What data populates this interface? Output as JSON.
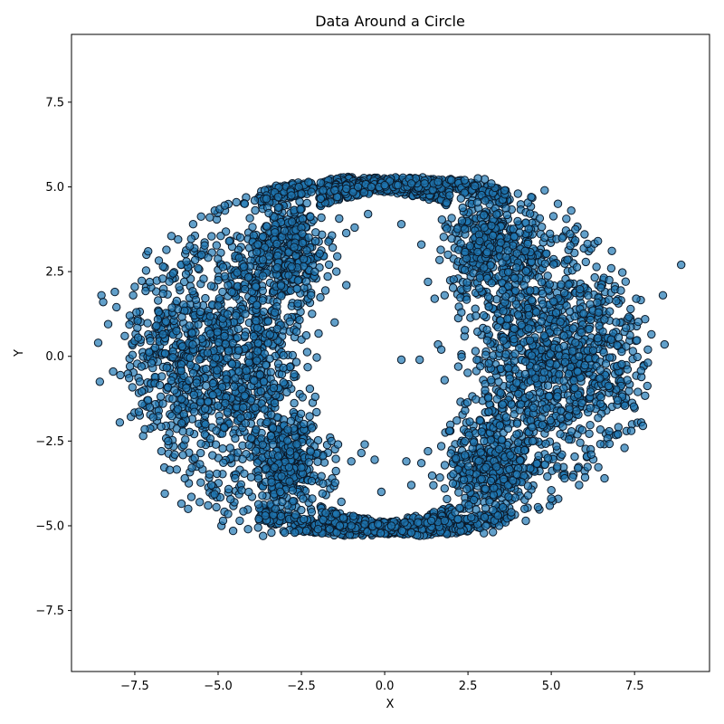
{
  "chart_data": {
    "type": "scatter",
    "title": "Data Around a Circle",
    "xlabel": "X",
    "ylabel": "Y",
    "xlim": [
      -9.4,
      9.75
    ],
    "ylim": [
      -9.3,
      9.5
    ],
    "xticks": [
      -7.5,
      -5.0,
      -2.5,
      0.0,
      2.5,
      5.0,
      7.5
    ],
    "yticks": [
      -7.5,
      -5.0,
      -2.5,
      0.0,
      2.5,
      5.0,
      7.5
    ],
    "xtick_labels": [
      "−7.5",
      "−5.0",
      "−2.5",
      "0.0",
      "2.5",
      "5.0",
      "7.5"
    ],
    "ytick_labels": [
      "−7.5",
      "−5.0",
      "−2.5",
      "0.0",
      "2.5",
      "5.0",
      "7.5"
    ],
    "grid": false,
    "marker_color": "#1f77b4",
    "marker_edge_color": "#0b1a2a",
    "marker_alpha": 0.7,
    "approx_point_count": 5000,
    "points": [
      [
        -8.6,
        0.4
      ],
      [
        -8.55,
        -0.75
      ],
      [
        -8.5,
        1.8
      ],
      [
        -8.45,
        1.6
      ],
      [
        -8.3,
        0.95
      ],
      [
        -8.15,
        -0.45
      ],
      [
        -8.1,
        1.9
      ],
      [
        -8.05,
        1.45
      ],
      [
        -7.95,
        -1.95
      ],
      [
        -7.8,
        0.6
      ],
      [
        -7.65,
        1.2
      ],
      [
        -7.55,
        1.8
      ],
      [
        -7.5,
        2.05
      ],
      [
        -7.45,
        1.3
      ],
      [
        -7.4,
        0.55
      ],
      [
        -7.35,
        -0.75
      ],
      [
        -7.3,
        -0.3
      ],
      [
        -7.25,
        -2.35
      ],
      [
        -7.2,
        -2.15
      ],
      [
        -7.15,
        3.0
      ],
      [
        -7.1,
        3.1
      ],
      [
        -7.05,
        -1.5
      ],
      [
        -7.0,
        -0.2
      ],
      [
        -6.95,
        -1.8
      ],
      [
        -6.9,
        -0.8
      ],
      [
        -6.85,
        0.9
      ],
      [
        -6.8,
        1.65
      ],
      [
        -6.75,
        -0.85
      ],
      [
        -6.7,
        -2.8
      ],
      [
        -6.65,
        2.65
      ],
      [
        -6.6,
        -4.05
      ],
      [
        -6.5,
        -2.5
      ],
      [
        -6.45,
        -3.35
      ],
      [
        -6.4,
        3.55
      ],
      [
        -6.35,
        2.45
      ],
      [
        -6.3,
        -2.9
      ],
      [
        -6.25,
        0.75
      ],
      [
        -6.2,
        3.45
      ],
      [
        -6.1,
        -4.35
      ],
      [
        -6.0,
        -3.6
      ],
      [
        -5.95,
        2.8
      ],
      [
        -5.9,
        -4.5
      ],
      [
        -5.85,
        3.25
      ],
      [
        -5.8,
        -4.15
      ],
      [
        -5.75,
        3.9
      ],
      [
        -5.7,
        -3.0
      ],
      [
        -5.6,
        2.6
      ],
      [
        -5.55,
        -4.3
      ],
      [
        -5.5,
        3.0
      ],
      [
        -5.4,
        -2.3
      ],
      [
        -5.3,
        -4.4
      ],
      [
        -5.25,
        4.1
      ],
      [
        -5.2,
        -3.8
      ],
      [
        -5.1,
        4.3
      ],
      [
        -5.05,
        -4.45
      ],
      [
        -4.95,
        4.35
      ],
      [
        -4.9,
        -5.0
      ],
      [
        -4.85,
        -4.85
      ],
      [
        -4.8,
        4.45
      ],
      [
        -4.7,
        -4.65
      ],
      [
        -4.55,
        -5.15
      ],
      [
        -4.45,
        4.55
      ],
      [
        -4.35,
        -4.85
      ],
      [
        -4.2,
        4.5
      ],
      [
        -4.1,
        -5.1
      ],
      [
        -3.9,
        4.6
      ],
      [
        -3.8,
        -5.05
      ],
      [
        -3.65,
        -5.3
      ],
      [
        -3.55,
        4.65
      ],
      [
        -3.4,
        -5.2
      ],
      [
        -3.2,
        4.7
      ],
      [
        -3.0,
        -5.2
      ],
      [
        -2.8,
        4.75
      ],
      [
        -2.7,
        -5.2
      ],
      [
        -2.5,
        4.8
      ],
      [
        -2.35,
        -5.15
      ],
      [
        -2.2,
        4.85
      ],
      [
        -2.0,
        -5.1
      ],
      [
        -1.85,
        4.9
      ],
      [
        -1.65,
        -5.1
      ],
      [
        -1.5,
        4.9
      ],
      [
        -1.35,
        -5.0
      ],
      [
        -1.15,
        4.95
      ],
      [
        -1.0,
        -5.0
      ],
      [
        -0.8,
        5.0
      ],
      [
        -0.6,
        -4.95
      ],
      [
        -0.4,
        5.0
      ],
      [
        -0.2,
        -4.95
      ],
      [
        0.0,
        5.05
      ],
      [
        0.2,
        -5.0
      ],
      [
        0.4,
        5.05
      ],
      [
        0.6,
        -4.9
      ],
      [
        0.8,
        5.1
      ],
      [
        1.0,
        -4.9
      ],
      [
        1.2,
        5.1
      ],
      [
        1.4,
        -4.85
      ],
      [
        1.6,
        5.15
      ],
      [
        1.8,
        -4.85
      ],
      [
        2.0,
        5.2
      ],
      [
        2.2,
        -4.8
      ],
      [
        2.4,
        5.2
      ],
      [
        2.6,
        -4.75
      ],
      [
        2.8,
        5.25
      ],
      [
        3.0,
        -4.75
      ],
      [
        3.2,
        5.1
      ],
      [
        3.4,
        -4.7
      ],
      [
        3.6,
        4.9
      ],
      [
        3.8,
        -4.6
      ],
      [
        4.0,
        4.8
      ],
      [
        4.2,
        -4.5
      ],
      [
        4.4,
        4.7
      ],
      [
        4.6,
        -4.45
      ],
      [
        4.8,
        4.9
      ],
      [
        5.0,
        -4.2
      ],
      [
        5.2,
        4.5
      ],
      [
        5.4,
        -3.6
      ],
      [
        5.6,
        4.3
      ],
      [
        5.8,
        -3.3
      ],
      [
        6.0,
        3.6
      ],
      [
        6.2,
        -2.9
      ],
      [
        6.4,
        3.4
      ],
      [
        6.6,
        -3.6
      ],
      [
        6.8,
        2.6
      ],
      [
        7.0,
        -2.3
      ],
      [
        7.2,
        -2.7
      ],
      [
        7.4,
        -2.2
      ],
      [
        7.55,
        1.7
      ],
      [
        7.6,
        -1.05
      ],
      [
        7.7,
        -1.95
      ],
      [
        7.75,
        -2.05
      ],
      [
        7.9,
        0.2
      ],
      [
        8.35,
        1.8
      ],
      [
        8.4,
        0.35
      ],
      [
        8.9,
        2.7
      ],
      [
        -1.45,
        2.5
      ],
      [
        -1.15,
        2.1
      ],
      [
        -1.5,
        1.0
      ],
      [
        -0.9,
        3.8
      ],
      [
        -0.5,
        4.2
      ],
      [
        0.5,
        3.9
      ],
      [
        0.5,
        -0.1
      ],
      [
        1.05,
        -0.1
      ],
      [
        1.1,
        3.3
      ],
      [
        1.3,
        2.2
      ],
      [
        1.5,
        1.7
      ],
      [
        1.6,
        0.35
      ],
      [
        1.7,
        0.2
      ],
      [
        1.8,
        1.8
      ],
      [
        1.8,
        -0.7
      ],
      [
        1.9,
        3.0
      ],
      [
        1.95,
        -2.2
      ],
      [
        -0.6,
        -2.6
      ],
      [
        -0.7,
        -2.85
      ],
      [
        -0.3,
        -3.05
      ],
      [
        -1.0,
        -3.1
      ],
      [
        -1.4,
        -2.6
      ],
      [
        -1.6,
        -2.5
      ],
      [
        0.65,
        -3.1
      ],
      [
        1.1,
        -3.15
      ],
      [
        1.3,
        -2.8
      ],
      [
        0.8,
        -3.8
      ],
      [
        -0.1,
        -4.0
      ],
      [
        1.7,
        -2.65
      ],
      [
        1.8,
        -3.9
      ]
    ],
    "ring_bands": [
      {
        "cx": -0.9,
        "cy": 0.0,
        "r_min": 4.9,
        "r_max": 5.3,
        "arc": "left-top-bottom",
        "count": 700
      },
      {
        "cx": 0.9,
        "cy": 0.0,
        "r_min": 4.9,
        "r_max": 5.3,
        "arc": "right-top-bottom",
        "count": 700
      }
    ],
    "clusters": [
      {
        "center": [
          -4.4,
          0.0
        ],
        "spread": [
          1.5,
          2.6
        ],
        "count": 900
      },
      {
        "center": [
          -2.9,
          3.2
        ],
        "spread": [
          0.9,
          1.0
        ],
        "count": 350
      },
      {
        "center": [
          -2.9,
          -3.3
        ],
        "spread": [
          0.9,
          1.0
        ],
        "count": 350
      },
      {
        "center": [
          4.6,
          0.0
        ],
        "spread": [
          1.5,
          2.6
        ],
        "count": 900
      },
      {
        "center": [
          3.1,
          3.2
        ],
        "spread": [
          0.9,
          1.0
        ],
        "count": 350
      },
      {
        "center": [
          3.1,
          -3.3
        ],
        "spread": [
          0.9,
          1.0
        ],
        "count": 350
      },
      {
        "center": [
          -6.5,
          0.0
        ],
        "spread": [
          1.0,
          2.0
        ],
        "count": 250
      },
      {
        "center": [
          6.6,
          0.0
        ],
        "spread": [
          1.0,
          2.0
        ],
        "count": 250
      }
    ]
  }
}
